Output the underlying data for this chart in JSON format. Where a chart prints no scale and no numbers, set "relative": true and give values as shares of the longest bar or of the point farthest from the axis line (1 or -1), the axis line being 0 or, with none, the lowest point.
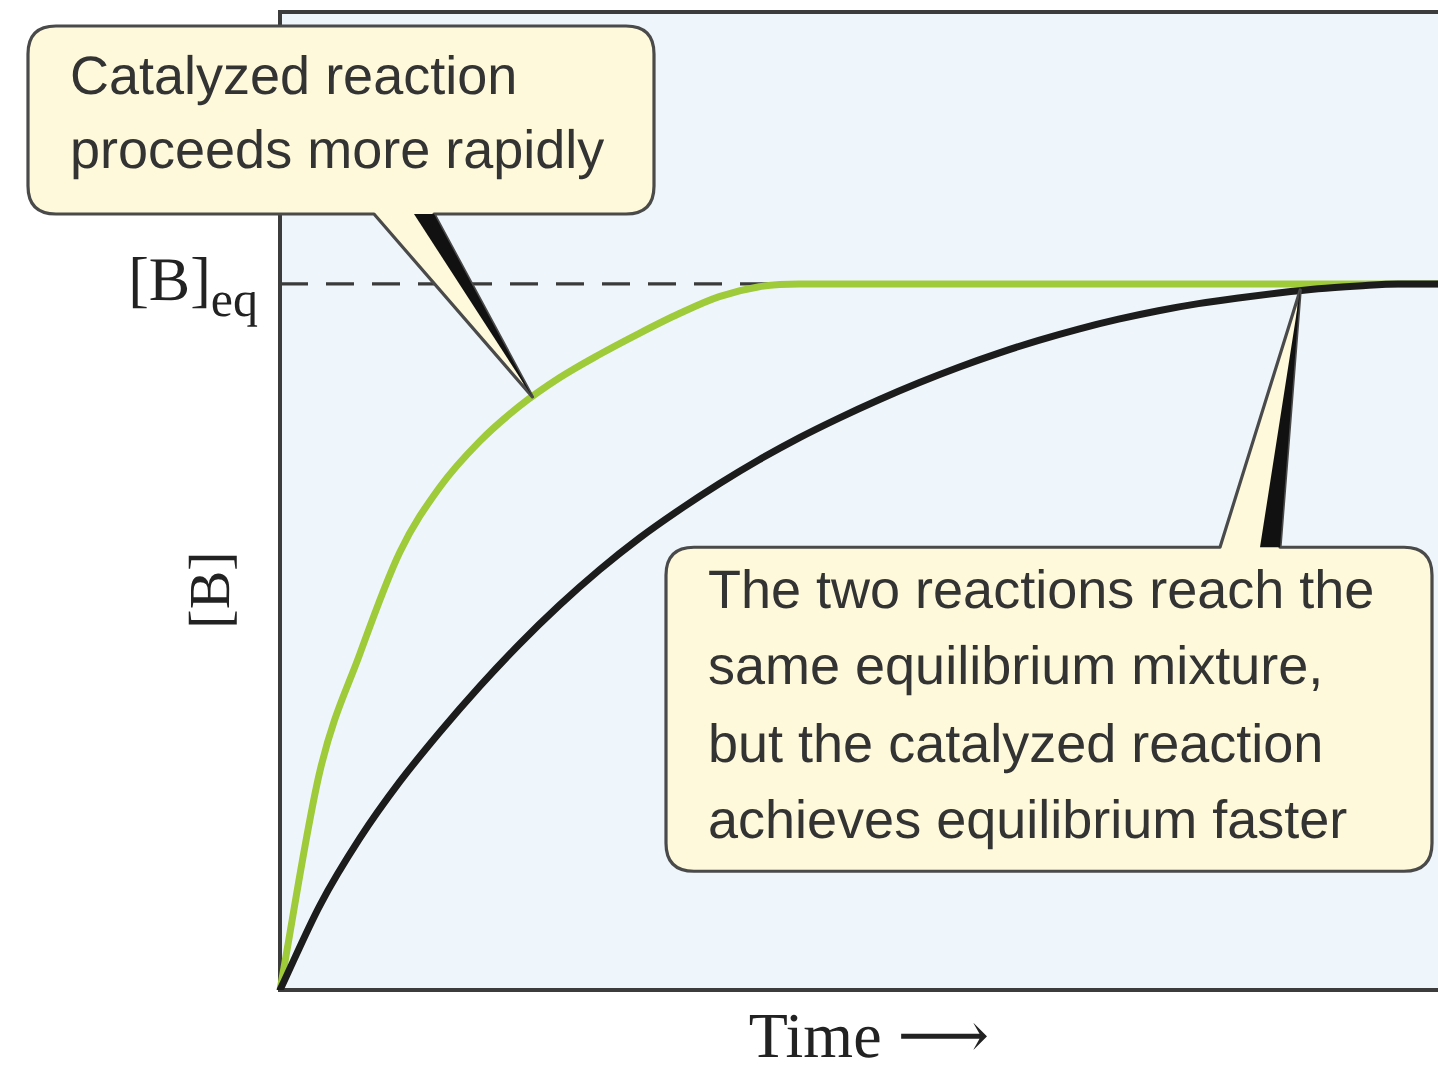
{
  "chart_data": {
    "type": "line",
    "xlabel": "Time ⟶",
    "ylabel": "[B]",
    "relative": true,
    "categories": [
      null,
      null,
      null,
      null,
      null,
      null,
      null,
      null,
      null,
      null,
      null,
      null,
      null,
      null,
      null,
      null,
      null,
      null,
      null,
      null,
      null,
      null,
      null,
      null,
      null,
      null,
      null,
      null,
      null,
      null
    ],
    "series": [
      {
        "color": "#1c1c1c",
        "values": [
          0,
          0.12,
          0.215,
          0.295,
          0.365,
          0.43,
          0.49,
          0.545,
          0.595,
          0.64,
          0.68,
          0.717,
          0.751,
          0.782,
          0.81,
          0.836,
          0.86,
          0.882,
          0.902,
          0.92,
          0.936,
          0.95,
          0.962,
          0.972,
          0.98,
          0.987,
          0.993,
          0.997,
          1,
          1
        ]
      },
      {
        "color": "#9fca3a",
        "values": [
          0,
          0.31,
          0.476,
          0.62,
          0.712,
          0.777,
          0.827,
          0.867,
          0.9,
          0.93,
          0.958,
          0.982,
          0.996,
          1,
          1,
          1,
          1,
          1,
          1,
          1,
          1,
          1,
          1,
          1,
          1,
          1,
          1,
          1,
          1,
          1
        ]
      }
    ],
    "ref_lines": [
      {
        "axis": "y",
        "value": 1,
        "label": "[B]$_{eq}$",
        "color": "#3a3a3a",
        "line_style": "dashed"
      }
    ],
    "annotations": [
      "Catalyzed reaction\nproceeds more rapidly",
      "The two reactions reach the\nsame equilibrium mixture,\nbut the catalyzed reaction\nachieves equilibrium faster"
    ]
  }
}
